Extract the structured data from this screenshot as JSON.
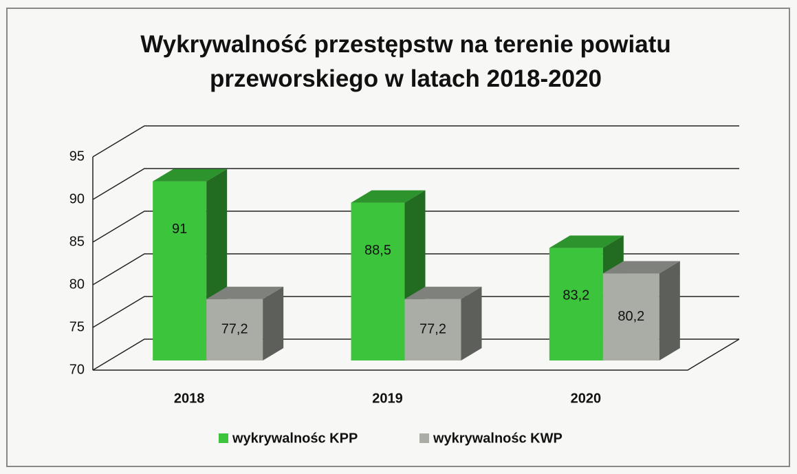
{
  "chart_data": {
    "type": "bar3d",
    "title": "Wykrywalność przestępstw na terenie powiatu przeworskiego w latach 2018-2020",
    "categories": [
      "2018",
      "2019",
      "2020"
    ],
    "series": [
      {
        "name": "wykrywalnośc KPP",
        "color": "#3cc43c",
        "values": [
          91,
          88.5,
          83.2
        ],
        "value_labels": [
          "91",
          "88,5",
          "83,2"
        ]
      },
      {
        "name": "wykrywalnośc KWP",
        "color": "#a9ada5",
        "values": [
          77.2,
          77.2,
          80.2
        ],
        "value_labels": [
          "77,2",
          "77,2",
          "80,2"
        ]
      }
    ],
    "ylim": [
      70,
      95
    ],
    "yticks": [
      70,
      75,
      80,
      85,
      90,
      95
    ],
    "grid": true,
    "legend": "bottom"
  }
}
